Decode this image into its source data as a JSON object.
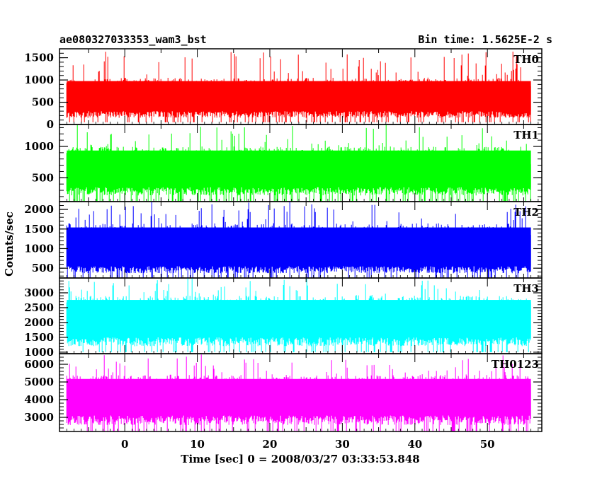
{
  "header": {
    "title": "ae080327033353_wam3_bst",
    "bin_time": "Bin time: 1.5625E-2 s"
  },
  "chart_data": {
    "type": "line",
    "xlabel": "Time [sec] 0 = 2008/03/27 03:33:53.848",
    "ylabel": "Counts/sec",
    "xlim": [
      -9,
      57.5
    ],
    "x_data_range": [
      -8,
      56
    ],
    "x_ticks": [
      0,
      10,
      20,
      30,
      40,
      50
    ],
    "grid": false,
    "panels": [
      {
        "label": "TH0",
        "color": "#ff0000",
        "ylim": [
          0,
          1700
        ],
        "y_ticks": [
          0,
          500,
          1000,
          1500
        ],
        "base_low": 50,
        "typical_low": 300,
        "typical_high": 1050,
        "peak": 1650
      },
      {
        "label": "TH1",
        "color": "#00ff00",
        "ylim": [
          120,
          1350
        ],
        "y_ticks": [
          500,
          1000
        ],
        "base_low": 130,
        "typical_low": 350,
        "typical_high": 1000,
        "peak": 1350
      },
      {
        "label": "TH2",
        "color": "#0000ff",
        "ylim": [
          250,
          2200
        ],
        "y_ticks": [
          500,
          1000,
          1500,
          2000
        ],
        "base_low": 250,
        "typical_low": 550,
        "typical_high": 1650,
        "peak": 2200
      },
      {
        "label": "TH3",
        "color": "#00ffff",
        "ylim": [
          950,
          3500
        ],
        "y_ticks": [
          1000,
          1500,
          2000,
          2500,
          3000
        ],
        "base_low": 1000,
        "typical_low": 1500,
        "typical_high": 2900,
        "peak": 3500
      },
      {
        "label": "TH0123",
        "color": "#ff00ff",
        "ylim": [
          2200,
          6600
        ],
        "y_ticks": [
          3000,
          4000,
          5000,
          6000
        ],
        "base_low": 2200,
        "typical_low": 3100,
        "typical_high": 5400,
        "peak": 6600
      }
    ]
  }
}
